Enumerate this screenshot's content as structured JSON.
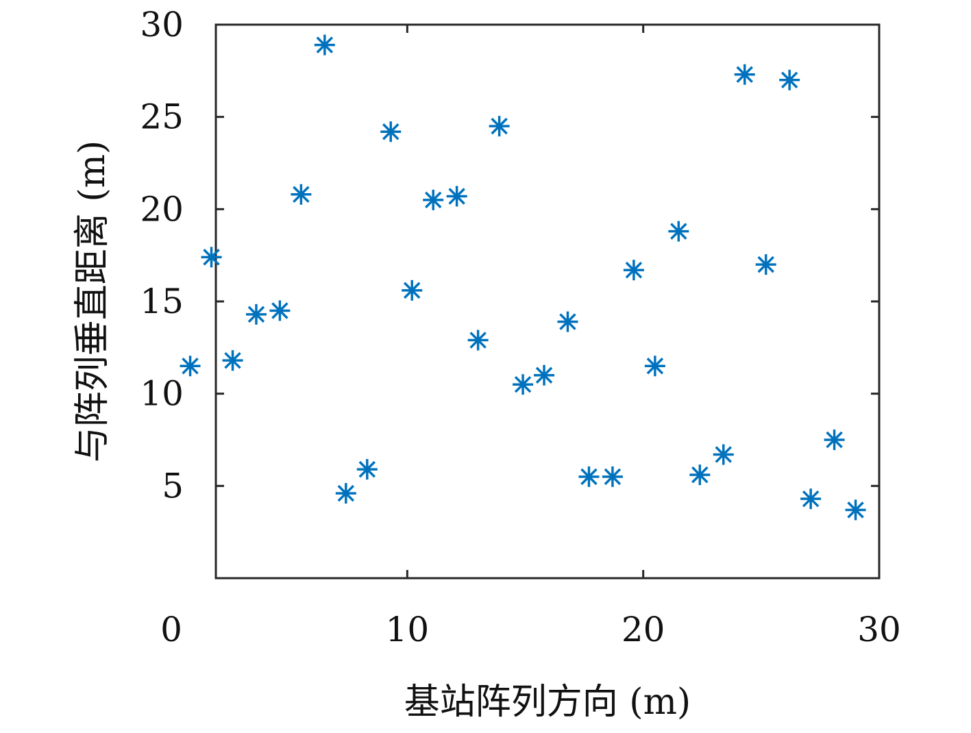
{
  "chart_data": {
    "type": "scatter",
    "title": "",
    "xlabel": "基站阵列方向 (m)",
    "ylabel": "与阵列垂直距离 (m)",
    "xlim": [
      0,
      30
    ],
    "ylim": [
      0,
      30
    ],
    "xticks": [
      0,
      10,
      20,
      30
    ],
    "yticks": [
      5,
      10,
      15,
      20,
      25,
      30
    ],
    "grid": false,
    "legend": "none",
    "marker": "asterisk",
    "marker_color": "#0072BD",
    "points": [
      {
        "x": 0.8,
        "y": 11.5
      },
      {
        "x": 1.7,
        "y": 17.4
      },
      {
        "x": 2.6,
        "y": 11.8
      },
      {
        "x": 3.6,
        "y": 14.3
      },
      {
        "x": 4.6,
        "y": 14.5
      },
      {
        "x": 5.5,
        "y": 20.8
      },
      {
        "x": 6.5,
        "y": 28.9
      },
      {
        "x": 7.4,
        "y": 4.6
      },
      {
        "x": 8.3,
        "y": 5.9
      },
      {
        "x": 9.3,
        "y": 24.2
      },
      {
        "x": 10.2,
        "y": 15.6
      },
      {
        "x": 11.1,
        "y": 20.5
      },
      {
        "x": 12.1,
        "y": 20.7
      },
      {
        "x": 13.0,
        "y": 12.9
      },
      {
        "x": 13.9,
        "y": 24.5
      },
      {
        "x": 14.9,
        "y": 10.5
      },
      {
        "x": 15.8,
        "y": 11.0
      },
      {
        "x": 16.8,
        "y": 13.9
      },
      {
        "x": 17.7,
        "y": 5.5
      },
      {
        "x": 18.7,
        "y": 5.5
      },
      {
        "x": 19.6,
        "y": 16.7
      },
      {
        "x": 20.5,
        "y": 11.5
      },
      {
        "x": 21.5,
        "y": 18.8
      },
      {
        "x": 22.4,
        "y": 5.6
      },
      {
        "x": 23.4,
        "y": 6.7
      },
      {
        "x": 24.3,
        "y": 27.3
      },
      {
        "x": 25.2,
        "y": 17.0
      },
      {
        "x": 26.2,
        "y": 27.0
      },
      {
        "x": 27.1,
        "y": 4.3
      },
      {
        "x": 28.1,
        "y": 7.5
      },
      {
        "x": 29.0,
        "y": 3.7
      }
    ]
  }
}
